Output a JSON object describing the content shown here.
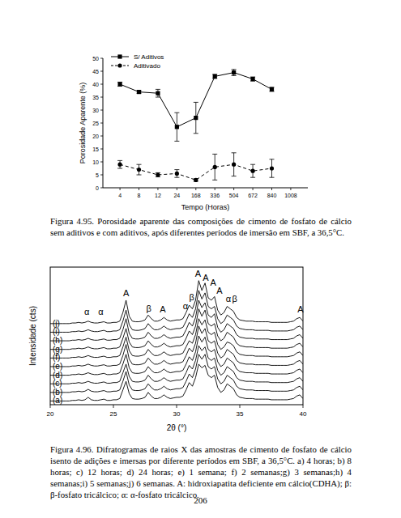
{
  "chart_data": [
    {
      "type": "line",
      "xlabel": "Tempo (Horas)",
      "ylabel": "Porosidade Aparente (%)",
      "categories": [
        "4",
        "8",
        "12",
        "24",
        "168",
        "336",
        "504",
        "672",
        "840",
        "1008"
      ],
      "ylim": [
        0,
        50
      ],
      "yticks": [
        0,
        5,
        10,
        15,
        20,
        25,
        30,
        35,
        40,
        45,
        50
      ],
      "grid": false,
      "legend": "upper left",
      "series": [
        {
          "name": "S/ Aditivos",
          "color": "#000000",
          "marker": "square",
          "line_style": "solid",
          "values": [
            40,
            37,
            36.5,
            23.5,
            27,
            43,
            44.5,
            42,
            38,
            null
          ],
          "errors": [
            0.8,
            0.5,
            1.5,
            5.5,
            6,
            0.8,
            1.2,
            0.8,
            0.8,
            null
          ]
        },
        {
          "name": "Aditivado",
          "color": "#000000",
          "marker": "circle",
          "line_style": "dashed",
          "values": [
            9,
            7,
            5,
            5.5,
            3,
            8,
            9,
            6.5,
            7.5,
            null
          ],
          "errors": [
            1.5,
            2,
            0.8,
            1.5,
            0.5,
            5,
            4.5,
            2.5,
            3.5,
            null
          ]
        }
      ]
    },
    {
      "type": "line",
      "xlabel": "2θ (°)",
      "ylabel": "Intensidade (cts)",
      "tick_labels": "x",
      "xlim": [
        20,
        40
      ],
      "xticks": [
        20,
        25,
        30,
        35,
        40
      ],
      "ylim": [
        0,
        112
      ],
      "grid": false,
      "x": [
        20,
        20.25,
        20.5,
        20.75,
        21,
        21.25,
        21.5,
        21.75,
        22,
        22.25,
        22.5,
        22.75,
        23,
        23.25,
        23.5,
        23.75,
        24,
        24.25,
        24.5,
        24.75,
        25,
        25.25,
        25.5,
        25.75,
        26,
        26.25,
        26.5,
        26.75,
        27,
        27.25,
        27.5,
        27.75,
        28,
        28.25,
        28.5,
        28.75,
        29,
        29.25,
        29.5,
        29.75,
        30,
        30.25,
        30.5,
        30.75,
        31,
        31.25,
        31.5,
        31.75,
        32,
        32.25,
        32.5,
        32.75,
        33,
        33.25,
        33.5,
        33.75,
        34,
        34.25,
        34.5,
        34.75,
        35,
        35.25,
        35.5,
        35.75,
        36,
        36.25,
        36.5,
        36.75,
        37,
        37.25,
        37.5,
        37.75,
        38,
        38.25,
        38.5,
        38.75,
        39,
        39.25,
        39.5,
        39.75,
        40
      ],
      "series": [
        {
          "name": "(a)",
          "color": "#000000",
          "offset": 0,
          "values": [
            3,
            3,
            3,
            3,
            3,
            3,
            3,
            3.5,
            3.5,
            4,
            3.5,
            4,
            6,
            4,
            3.5,
            3.5,
            4,
            4.5,
            3.5,
            3.5,
            4,
            4,
            5,
            12,
            19,
            9,
            5,
            4.5,
            4.5,
            5,
            6,
            10,
            7,
            5,
            5,
            6,
            8,
            6,
            5,
            5.5,
            6,
            6,
            7,
            12,
            18,
            15,
            22,
            33,
            30,
            32,
            24,
            22,
            24,
            14,
            10,
            12,
            17,
            15,
            13,
            8,
            6,
            5.5,
            5,
            5,
            5,
            4.5,
            4.5,
            4.5,
            4.5,
            4.5,
            4,
            4,
            4,
            4,
            4,
            4,
            4.5,
            5,
            7,
            8,
            5
          ]
        },
        {
          "name": "(b)",
          "color": "#000000",
          "offset": 7,
          "values": [
            3,
            3,
            3,
            3,
            3,
            3,
            3,
            3.5,
            3.5,
            4,
            3.5,
            4,
            5.5,
            4,
            3.5,
            3.5,
            4,
            4.5,
            3.5,
            3.5,
            4,
            4,
            5,
            12,
            20,
            9,
            5,
            4.5,
            4.5,
            5,
            6,
            10,
            7,
            5,
            5,
            6,
            8,
            6,
            5,
            5.5,
            6,
            6,
            7,
            12,
            18,
            15,
            22,
            34,
            30,
            34,
            24,
            22,
            24,
            14,
            10,
            12,
            17,
            15,
            13,
            8,
            6,
            5.5,
            5,
            5,
            5,
            4.5,
            4.5,
            4.5,
            4.5,
            4.5,
            4,
            4,
            4,
            4,
            4,
            4,
            4.5,
            5,
            7,
            8,
            5
          ]
        },
        {
          "name": "(c)",
          "color": "#000000",
          "offset": 14,
          "values": [
            3,
            3,
            3,
            3,
            3,
            3,
            3,
            3.5,
            3.5,
            4,
            3.5,
            4,
            5,
            4,
            3.5,
            3.5,
            4,
            4.5,
            3.5,
            3.5,
            4,
            4,
            5,
            12,
            19,
            9,
            5,
            4.5,
            4.5,
            5,
            6,
            10,
            7,
            5,
            5,
            6,
            8,
            6,
            5,
            5.5,
            6,
            6,
            7,
            12,
            18,
            15,
            22,
            34,
            30,
            33,
            24,
            22,
            24,
            14,
            10,
            12,
            17,
            15,
            13,
            8,
            6,
            5.5,
            5,
            5,
            5,
            4.5,
            4.5,
            4.5,
            4.5,
            4.5,
            4,
            4,
            4,
            4,
            4,
            4,
            4.5,
            5,
            7,
            8,
            5
          ]
        },
        {
          "name": "(d)",
          "color": "#000000",
          "offset": 21,
          "values": [
            3,
            3,
            3,
            3,
            3,
            3,
            3,
            3.5,
            3.5,
            4,
            3.5,
            4,
            5,
            4,
            3.5,
            3.5,
            4,
            4.5,
            3.5,
            3.5,
            4,
            4,
            5,
            12,
            20,
            9,
            5,
            4.5,
            4.5,
            5,
            6,
            10,
            7,
            5,
            5,
            6,
            8,
            6,
            5,
            5.5,
            6,
            6,
            7,
            12,
            18,
            15,
            22,
            35,
            30,
            34,
            24,
            22,
            24,
            14,
            10,
            12,
            17,
            15,
            13,
            8,
            6,
            5.5,
            5,
            5,
            5,
            4.5,
            4.5,
            4.5,
            4.5,
            4.5,
            4,
            4,
            4,
            4,
            4,
            4,
            4.5,
            5,
            7,
            8,
            5
          ]
        },
        {
          "name": "(e)",
          "color": "#000000",
          "offset": 28,
          "values": [
            3,
            3,
            3,
            3,
            3,
            3,
            3,
            3.5,
            3.5,
            4,
            3.5,
            4,
            5,
            4,
            3.5,
            3.5,
            4,
            4.5,
            3.5,
            3.5,
            4,
            4,
            5,
            12,
            21,
            9,
            5,
            4.5,
            4.5,
            5,
            6,
            10,
            7,
            5,
            5,
            6,
            8,
            6,
            5,
            5.5,
            6,
            6,
            7,
            12,
            18,
            15,
            22,
            36,
            30,
            34,
            24,
            22,
            24,
            14,
            10,
            12,
            17,
            15,
            13,
            8,
            6,
            5.5,
            5,
            5,
            5,
            4.5,
            4.5,
            4.5,
            4.5,
            4.5,
            4,
            4,
            4,
            4,
            4,
            4,
            4.5,
            5,
            7,
            8,
            5
          ]
        },
        {
          "name": "(f)",
          "color": "#000000",
          "offset": 35,
          "values": [
            3,
            3,
            3,
            3,
            3,
            3,
            3,
            3.5,
            3.5,
            4,
            3.5,
            4,
            5,
            4,
            3.5,
            3.5,
            4,
            4.5,
            3.5,
            3.5,
            4,
            4,
            5,
            12,
            20,
            9,
            5,
            4.5,
            4.5,
            5,
            6,
            10,
            7,
            5,
            5,
            6,
            8,
            6,
            5,
            5.5,
            6,
            6,
            7,
            12,
            17,
            15,
            22,
            35,
            30,
            34,
            24,
            22,
            24,
            14,
            10,
            12,
            16,
            15,
            13,
            8,
            6,
            5.5,
            5,
            5,
            5,
            4.5,
            4.5,
            4.5,
            4.5,
            4.5,
            4,
            4,
            4,
            4,
            4,
            4,
            4.5,
            5,
            7,
            8,
            5
          ]
        },
        {
          "name": "(g)",
          "color": "#000000",
          "offset": 42,
          "values": [
            3,
            3,
            3,
            3,
            3,
            3,
            3,
            3.5,
            3.5,
            4,
            3.5,
            4,
            5,
            4,
            3.5,
            3.5,
            4,
            4.5,
            3.5,
            3.5,
            4,
            4,
            5,
            12,
            20,
            9,
            5,
            4.5,
            4.5,
            5,
            6,
            10,
            7,
            5,
            5,
            6,
            8,
            6,
            5,
            5.5,
            6,
            6,
            7,
            12,
            18,
            15,
            22,
            36,
            30,
            35,
            24,
            22,
            24,
            14,
            10,
            12,
            17,
            15,
            13,
            8,
            6,
            5.5,
            5,
            5,
            5,
            4.5,
            4.5,
            4.5,
            4.5,
            4.5,
            4,
            4,
            4,
            4,
            4,
            4,
            4.5,
            5,
            7,
            8,
            5
          ]
        },
        {
          "name": "(h)",
          "color": "#000000",
          "offset": 49,
          "values": [
            3,
            3,
            3,
            3,
            3,
            3,
            3,
            3.5,
            3.5,
            4,
            3.5,
            4,
            5,
            4,
            3.5,
            3.5,
            4,
            4.5,
            3.5,
            3.5,
            4,
            4,
            5,
            12,
            21,
            9,
            5,
            4.5,
            4.5,
            5,
            6,
            10,
            7,
            5,
            5,
            6,
            8,
            6,
            5,
            5.5,
            6,
            6,
            7,
            12,
            18,
            15,
            22,
            36,
            30,
            34,
            24,
            22,
            25,
            14,
            10,
            12,
            17,
            15,
            13,
            8,
            6,
            5.5,
            5,
            5,
            5,
            4.5,
            4.5,
            4.5,
            4.5,
            4.5,
            4,
            4,
            4,
            4,
            4,
            4,
            4.5,
            5,
            7,
            8,
            5
          ]
        },
        {
          "name": "(i)",
          "color": "#000000",
          "offset": 56,
          "values": [
            3,
            3,
            3,
            3,
            3,
            3,
            3,
            3.5,
            3.5,
            4,
            3.5,
            4,
            5,
            4,
            3.5,
            3.5,
            4,
            4.5,
            3.5,
            3.5,
            4,
            4,
            5,
            12,
            21,
            9,
            5,
            4.5,
            4.5,
            5,
            6,
            10,
            7,
            5,
            5,
            6,
            8,
            6,
            5,
            5.5,
            6,
            6,
            7,
            12,
            18,
            15,
            22,
            37,
            30,
            35,
            24,
            22,
            24,
            14,
            10,
            12,
            17,
            15,
            13,
            8,
            6,
            5.5,
            5,
            5,
            5,
            4.5,
            4.5,
            4.5,
            4.5,
            4.5,
            4,
            4,
            4,
            4,
            4,
            4,
            4.5,
            5,
            7,
            8,
            5
          ]
        },
        {
          "name": "(j)",
          "color": "#000000",
          "offset": 63,
          "values": [
            3,
            3,
            3,
            3,
            3,
            3,
            3,
            3.5,
            3.5,
            4,
            3.5,
            4,
            5,
            4,
            3.5,
            3.5,
            4,
            4.5,
            3.5,
            3.5,
            4,
            4,
            5,
            12,
            22,
            9,
            5,
            4.5,
            4.5,
            5,
            6,
            10,
            7,
            5,
            5,
            6,
            8,
            6,
            5,
            5.5,
            6,
            6,
            7,
            12,
            18,
            15,
            22,
            38,
            30,
            36,
            24,
            22,
            25,
            14,
            10,
            12,
            17,
            15,
            13,
            8,
            6,
            5.5,
            5,
            5,
            5,
            4.5,
            4.5,
            4.5,
            4.5,
            4.5,
            4,
            4,
            4,
            4,
            4,
            4,
            4.5,
            5,
            7,
            8,
            5
          ]
        }
      ],
      "annotations": [
        {
          "text": "α",
          "x": 22.9,
          "y": 73
        },
        {
          "text": "α",
          "x": 24.0,
          "y": 73
        },
        {
          "text": "A",
          "x": 26.0,
          "y": 88
        },
        {
          "text": "β",
          "x": 27.8,
          "y": 76
        },
        {
          "text": "A",
          "x": 28.9,
          "y": 75
        },
        {
          "text": "α",
          "x": 30.7,
          "y": 78
        },
        {
          "text": "β",
          "x": 31.2,
          "y": 85
        },
        {
          "text": "A",
          "x": 31.7,
          "y": 104
        },
        {
          "text": "A",
          "x": 32.3,
          "y": 101
        },
        {
          "text": "A",
          "x": 32.9,
          "y": 97
        },
        {
          "text": "A",
          "x": 33.4,
          "y": 90
        },
        {
          "text": "α",
          "x": 34.1,
          "y": 84
        },
        {
          "text": "β",
          "x": 34.6,
          "y": 84
        },
        {
          "text": "A",
          "x": 39.8,
          "y": 75
        }
      ]
    }
  ],
  "captions": [
    "Figura 4.95. Porosidade aparente das composições de cimento de fosfato de cálcio sem aditivos e com aditivos, após diferentes períodos de imersão em SBF, a 36,5°C.",
    "Figura 4.96. Difratogramas de raios X das amostras de cimento de fosfato de cálcio isento de adições e imersas por diferente períodos em SBF, a 36,5°C. a) 4 horas; b) 8 horas; c) 12 horas; d) 24 horas; e) 1 semana; f) 2 semanas;g) 3 semanas;h) 4 semanas;i) 5 semanas;j) 6 semanas. A: hidroxiapatita deficiente em cálcio(CDHA); β: β-fosfato tricálcico; α: α-fosfato tricálcico."
  ],
  "page_number": "206"
}
